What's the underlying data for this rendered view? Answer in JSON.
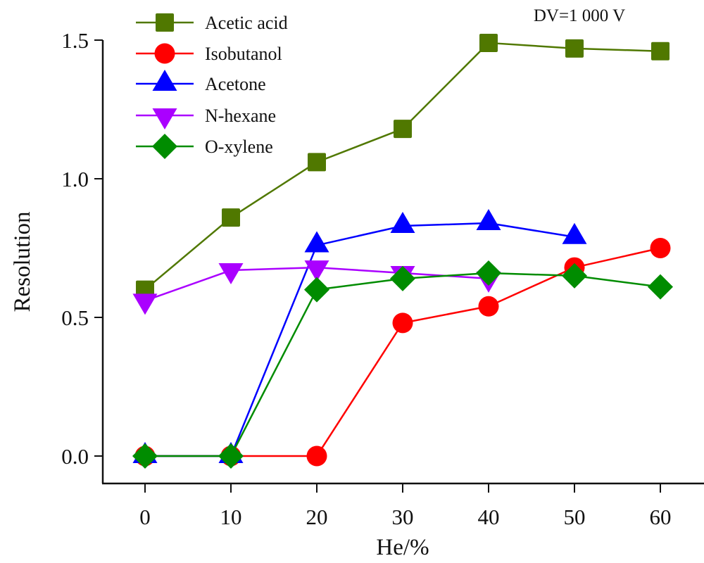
{
  "chart_data": {
    "type": "line",
    "title": "",
    "annotation": "DV=1 000 V",
    "xlabel": "He/%",
    "ylabel": "Resolution",
    "xlim": [
      -5,
      65
    ],
    "ylim": [
      -0.1,
      1.5
    ],
    "xticks": [
      0,
      10,
      20,
      30,
      40,
      50,
      60
    ],
    "xtick_labels": [
      "0",
      "10",
      "20",
      "30",
      "40",
      "50",
      "60"
    ],
    "yticks": [
      0.0,
      0.5,
      1.0,
      1.5
    ],
    "ytick_labels": [
      "0.0",
      "0.5",
      "1.0",
      "1.5"
    ],
    "grid": false,
    "legend_position": "top-left",
    "series": [
      {
        "name": "Acetic acid",
        "color": "#507800",
        "marker": "square",
        "x": [
          0,
          10,
          20,
          30,
          40,
          50,
          60
        ],
        "y": [
          0.6,
          0.86,
          1.06,
          1.18,
          1.49,
          1.47,
          1.46
        ]
      },
      {
        "name": "Isobutanol",
        "color": "#ff0000",
        "marker": "circle",
        "x": [
          0,
          10,
          20,
          30,
          40,
          50,
          60
        ],
        "y": [
          0.0,
          0.0,
          0.0,
          0.48,
          0.54,
          0.68,
          0.75
        ]
      },
      {
        "name": "Acetone",
        "color": "#0000ff",
        "marker": "triangle-up",
        "x": [
          0,
          10,
          20,
          30,
          40,
          50
        ],
        "y": [
          0.0,
          0.0,
          0.76,
          0.83,
          0.84,
          0.79
        ]
      },
      {
        "name": "N-hexane",
        "color": "#aa00ff",
        "marker": "triangle-down",
        "x": [
          0,
          10,
          20,
          30,
          40
        ],
        "y": [
          0.56,
          0.67,
          0.68,
          0.66,
          0.64
        ]
      },
      {
        "name": "O-xylene",
        "color": "#008c00",
        "marker": "diamond",
        "x": [
          0,
          10,
          20,
          30,
          40,
          50,
          60
        ],
        "y": [
          0.0,
          0.0,
          0.6,
          0.64,
          0.66,
          0.65,
          0.61
        ]
      }
    ]
  }
}
